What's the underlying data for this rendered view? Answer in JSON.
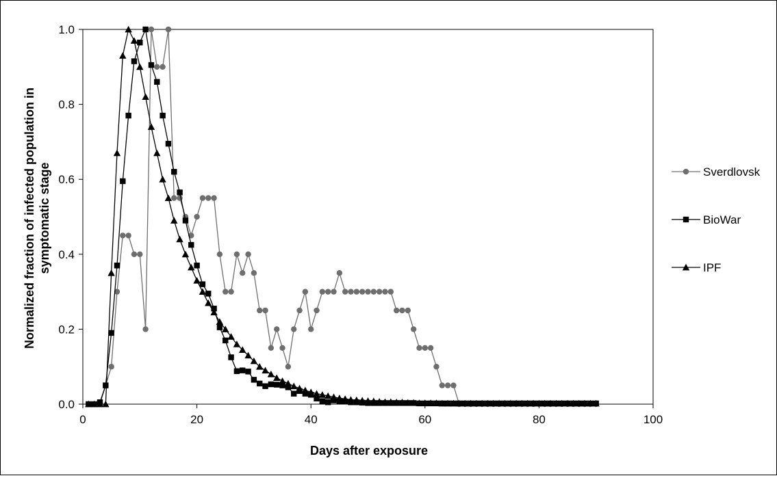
{
  "chart_data": {
    "type": "line",
    "xlabel": "Days after exposure",
    "ylabel_lines": [
      "Normalized fraction of infected population in",
      "symptomatic stage"
    ],
    "xlim": [
      0,
      100
    ],
    "ylim": [
      0,
      1.0
    ],
    "x_ticks": [
      "0",
      "20",
      "40",
      "60",
      "80",
      "100"
    ],
    "y_ticks": [
      "0.0",
      "0.2",
      "0.4",
      "0.6",
      "0.8",
      "1.0"
    ],
    "grid": false,
    "legend_position": "right",
    "series": [
      {
        "name": "Sverdlovsk",
        "marker": "circle",
        "color": "#6e6e6e",
        "x": [
          1,
          2,
          3,
          4,
          5,
          6,
          7,
          8,
          9,
          10,
          11,
          12,
          13,
          14,
          15,
          16,
          17,
          18,
          19,
          20,
          21,
          22,
          23,
          24,
          25,
          26,
          27,
          28,
          29,
          30,
          31,
          32,
          33,
          34,
          35,
          36,
          37,
          38,
          39,
          40,
          41,
          42,
          43,
          44,
          45,
          46,
          47,
          48,
          49,
          50,
          51,
          52,
          53,
          54,
          55,
          56,
          57,
          58,
          59,
          60,
          61,
          62,
          63,
          64,
          65,
          66,
          67,
          68,
          69,
          70,
          71,
          72,
          73,
          74,
          75,
          76,
          77,
          78,
          79,
          80,
          81,
          82,
          83,
          84,
          85,
          86,
          87,
          88,
          89,
          90
        ],
        "y": [
          0,
          0,
          0,
          0.05,
          0.1,
          0.3,
          0.45,
          0.45,
          0.4,
          0.4,
          0.2,
          1.0,
          0.9,
          0.9,
          1.0,
          0.55,
          0.55,
          0.5,
          0.45,
          0.5,
          0.55,
          0.55,
          0.55,
          0.4,
          0.3,
          0.3,
          0.4,
          0.35,
          0.4,
          0.35,
          0.25,
          0.25,
          0.15,
          0.2,
          0.15,
          0.1,
          0.2,
          0.25,
          0.3,
          0.2,
          0.25,
          0.3,
          0.3,
          0.3,
          0.35,
          0.3,
          0.3,
          0.3,
          0.3,
          0.3,
          0.3,
          0.3,
          0.3,
          0.3,
          0.25,
          0.25,
          0.25,
          0.2,
          0.15,
          0.15,
          0.15,
          0.1,
          0.05,
          0.05,
          0.05,
          0,
          0,
          0,
          0,
          0,
          0,
          0,
          0,
          0,
          0,
          0,
          0,
          0,
          0,
          0,
          0,
          0,
          0,
          0,
          0,
          0,
          0,
          0,
          0,
          0
        ]
      },
      {
        "name": "BioWar",
        "marker": "square",
        "color": "#000000",
        "x": [
          1,
          2,
          3,
          4,
          5,
          6,
          7,
          8,
          9,
          10,
          11,
          12,
          13,
          14,
          15,
          16,
          17,
          18,
          19,
          20,
          21,
          22,
          23,
          24,
          25,
          26,
          27,
          28,
          29,
          30,
          31,
          32,
          33,
          34,
          35,
          36,
          37,
          38,
          39,
          40,
          41,
          42,
          43,
          44,
          45,
          46,
          47,
          48,
          49,
          50,
          51,
          52,
          53,
          54,
          55,
          56,
          57,
          58,
          59,
          60,
          61,
          62,
          63,
          64,
          65,
          66,
          67,
          68,
          69,
          70,
          71,
          72,
          73,
          74,
          75,
          76,
          77,
          78,
          79,
          80,
          81,
          82,
          83,
          84,
          85,
          86,
          87,
          88,
          89,
          90
        ],
        "y": [
          0,
          0,
          0.005,
          0.05,
          0.19,
          0.37,
          0.595,
          0.77,
          0.915,
          0.965,
          1.0,
          0.905,
          0.86,
          0.77,
          0.695,
          0.62,
          0.565,
          0.49,
          0.425,
          0.37,
          0.32,
          0.295,
          0.255,
          0.205,
          0.17,
          0.125,
          0.088,
          0.09,
          0.087,
          0.065,
          0.055,
          0.048,
          0.053,
          0.052,
          0.05,
          0.045,
          0.028,
          0.035,
          0.028,
          0.025,
          0.015,
          0.008,
          0.005,
          0.01,
          0.008,
          0.007,
          0.005,
          0.005,
          0.004,
          0.003,
          0.003,
          0.003,
          0.003,
          0.003,
          0.003,
          0.003,
          0.003,
          0.003,
          0.002,
          0.002,
          0.002,
          0.002,
          0.002,
          0.002,
          0.002,
          0.002,
          0.002,
          0.002,
          0.002,
          0.002,
          0.002,
          0.002,
          0.002,
          0.002,
          0.002,
          0.002,
          0.002,
          0.002,
          0.002,
          0.002,
          0.002,
          0.002,
          0.002,
          0.002,
          0.002,
          0.002,
          0.002,
          0.002,
          0.002,
          0.002
        ]
      },
      {
        "name": "IPF",
        "marker": "triangle",
        "color": "#000000",
        "x": [
          1,
          2,
          3,
          4,
          5,
          6,
          7,
          8,
          9,
          10,
          11,
          12,
          13,
          14,
          15,
          16,
          17,
          18,
          19,
          20,
          21,
          22,
          23,
          24,
          25,
          26,
          27,
          28,
          29,
          30,
          31,
          32,
          33,
          34,
          35,
          36,
          37,
          38,
          39,
          40,
          41,
          42,
          43,
          44,
          45,
          46,
          47,
          48,
          49,
          50,
          51,
          52,
          53,
          54,
          55,
          56,
          57,
          58,
          59,
          60,
          61,
          62,
          63,
          64,
          65,
          66,
          67,
          68,
          69,
          70,
          71,
          72,
          73,
          74,
          75,
          76,
          77,
          78,
          79,
          80,
          81,
          82,
          83,
          84,
          85,
          86,
          87,
          88,
          89,
          90
        ],
        "y": [
          0,
          0,
          0,
          0,
          0.35,
          0.67,
          0.93,
          1.0,
          0.97,
          0.9,
          0.82,
          0.74,
          0.67,
          0.6,
          0.55,
          0.49,
          0.44,
          0.4,
          0.365,
          0.33,
          0.3,
          0.27,
          0.245,
          0.22,
          0.2,
          0.18,
          0.16,
          0.145,
          0.13,
          0.115,
          0.1,
          0.09,
          0.08,
          0.07,
          0.062,
          0.055,
          0.048,
          0.042,
          0.037,
          0.032,
          0.028,
          0.025,
          0.022,
          0.019,
          0.016,
          0.014,
          0.012,
          0.011,
          0.01,
          0.009,
          0.008,
          0.007,
          0.006,
          0.006,
          0.005,
          0.005,
          0.004,
          0.004,
          0.003,
          0.003,
          0.003,
          0.003,
          0.002,
          0.002,
          0.002,
          0.002,
          0.002,
          0.002,
          0.002,
          0.002,
          0.002,
          0.002,
          0.002,
          0.002,
          0.002,
          0.002,
          0.002,
          0.002,
          0.002,
          0.002,
          0.002,
          0.002,
          0.002,
          0.002,
          0.002,
          0.002,
          0.002,
          0.002,
          0.002,
          0.002
        ]
      }
    ]
  }
}
